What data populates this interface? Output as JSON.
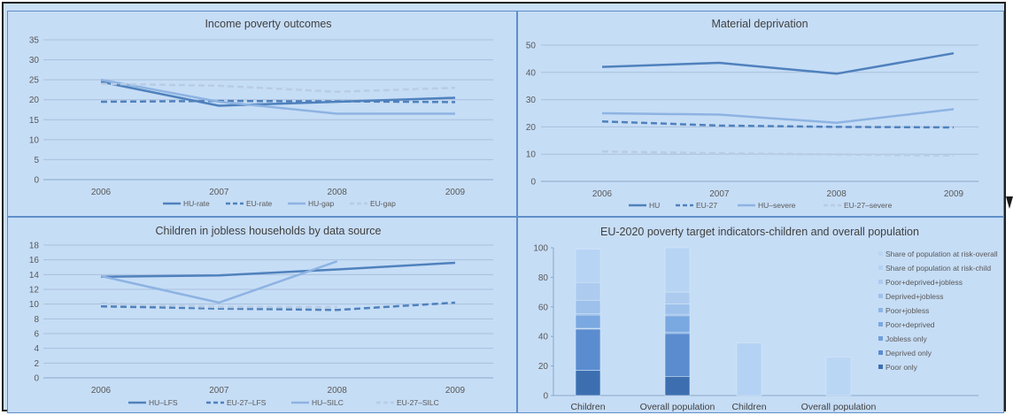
{
  "chart_data": [
    {
      "id": "income",
      "type": "line",
      "title": "Income poverty outcomes",
      "categories": [
        "2006",
        "2007",
        "2008",
        "2009"
      ],
      "ylim": [
        0,
        35
      ],
      "yticks": [
        0,
        5,
        10,
        15,
        20,
        25,
        30,
        35
      ],
      "grid": true,
      "legend_position": "bottom",
      "series": [
        {
          "name": "HU-rate",
          "values": [
            24.5,
            18.5,
            19.5,
            20.5
          ],
          "color": "#4f81bd",
          "dash": "solid",
          "width": 2.5
        },
        {
          "name": "EU-rate",
          "values": [
            19.5,
            19.7,
            19.6,
            19.4
          ],
          "color": "#4f81bd",
          "dash": "dashed",
          "width": 2.5
        },
        {
          "name": "HU-gap",
          "values": [
            25,
            19.5,
            16.5,
            16.5
          ],
          "color": "#8db3e2",
          "dash": "solid",
          "width": 2.5
        },
        {
          "name": "EU-gap",
          "values": [
            24,
            23.5,
            22,
            23
          ],
          "color": "#b8cce4",
          "dash": "dashed",
          "width": 2.5
        }
      ]
    },
    {
      "id": "deprivation",
      "type": "line",
      "title": "Material deprivation",
      "categories": [
        "2006",
        "2007",
        "2008",
        "2009"
      ],
      "ylim": [
        0,
        50
      ],
      "yticks": [
        0,
        10,
        20,
        30,
        40,
        50
      ],
      "grid": true,
      "legend_position": "bottom",
      "series": [
        {
          "name": "HU",
          "values": [
            42,
            43.5,
            39.5,
            47
          ],
          "color": "#4f81bd",
          "dash": "solid",
          "width": 2.5
        },
        {
          "name": "EU-27",
          "values": [
            22,
            20.5,
            20,
            19.8
          ],
          "color": "#4f81bd",
          "dash": "dashed",
          "width": 2.5
        },
        {
          "name": "HU–severe",
          "values": [
            25,
            24.5,
            21.5,
            26.5
          ],
          "color": "#8db3e2",
          "dash": "solid",
          "width": 2.5
        },
        {
          "name": "EU-27–severe",
          "values": [
            11,
            10.3,
            9.9,
            9.5
          ],
          "color": "#b8cce4",
          "dash": "dashed",
          "width": 2.5
        }
      ]
    },
    {
      "id": "jobless",
      "type": "line",
      "title": "Children in jobless households by data source",
      "categories": [
        "2006",
        "2007",
        "2008",
        "2009"
      ],
      "ylim": [
        0,
        18
      ],
      "yticks": [
        0,
        2,
        4,
        6,
        8,
        10,
        12,
        14,
        16,
        18
      ],
      "grid": true,
      "legend_position": "bottom",
      "series": [
        {
          "name": "HU–LFS",
          "values": [
            13.7,
            13.9,
            14.7,
            15.6
          ],
          "color": "#4f81bd",
          "dash": "solid",
          "width": 2.5
        },
        {
          "name": "EU-27–LFS",
          "values": [
            9.7,
            9.4,
            9.2,
            10.2
          ],
          "color": "#4f81bd",
          "dash": "dashed",
          "width": 2.5
        },
        {
          "name": "HU–SILC",
          "values": [
            13.8,
            10.2,
            15.8,
            null
          ],
          "color": "#8db3e2",
          "dash": "solid",
          "width": 2.5
        },
        {
          "name": "EU-27–SILC",
          "values": [
            10.1,
            9.6,
            9.6,
            null
          ],
          "color": "#b8cce4",
          "dash": "dashed",
          "width": 2.5
        }
      ]
    },
    {
      "id": "eu2020",
      "type": "bar",
      "stacked": true,
      "title": "EU-2020 poverty target indicators-children and overall population",
      "categories": [
        "Children",
        "Overall population",
        "Children",
        "Overall population"
      ],
      "ylim": [
        0,
        100
      ],
      "yticks": [
        0,
        20,
        40,
        60,
        80,
        100
      ],
      "grid": false,
      "legend_position": "right",
      "legend_order": [
        "Share of population at risk-overall",
        "Share of population at risk-child",
        "Poor+deprived+jobless",
        "Deprived+jobless",
        "Poor+jobless",
        "Poor+deprived",
        "Jobless only",
        "Deprived only",
        "Poor only"
      ],
      "series": [
        {
          "name": "Poor only",
          "values": [
            17,
            13,
            0,
            0
          ],
          "color": "#3d6fb0"
        },
        {
          "name": "Deprived only",
          "values": [
            28,
            29,
            0,
            0
          ],
          "color": "#5b8ccf"
        },
        {
          "name": "Jobless only",
          "values": [
            0.5,
            1,
            0,
            0
          ],
          "color": "#6e9fda"
        },
        {
          "name": "Poor+deprived",
          "values": [
            9,
            11,
            0,
            0
          ],
          "color": "#7aa8e0"
        },
        {
          "name": "Poor+jobless",
          "values": [
            1,
            1,
            0,
            0
          ],
          "color": "#8cb5e6"
        },
        {
          "name": "Deprived+jobless",
          "values": [
            9,
            7,
            0,
            0
          ],
          "color": "#9dc1eb"
        },
        {
          "name": "Poor+deprived+jobless",
          "values": [
            12,
            8,
            0,
            0
          ],
          "color": "#adcbef"
        },
        {
          "name": "Share of population at risk-child",
          "values": [
            0,
            0,
            35.5,
            0
          ],
          "color": "#b4d2f4"
        },
        {
          "name": "Share of population at risk-overall",
          "values": [
            0,
            0,
            0,
            26
          ],
          "color": "#bad6f5"
        }
      ],
      "unlabeled_top_values": [
        22.5,
        30
      ]
    }
  ]
}
